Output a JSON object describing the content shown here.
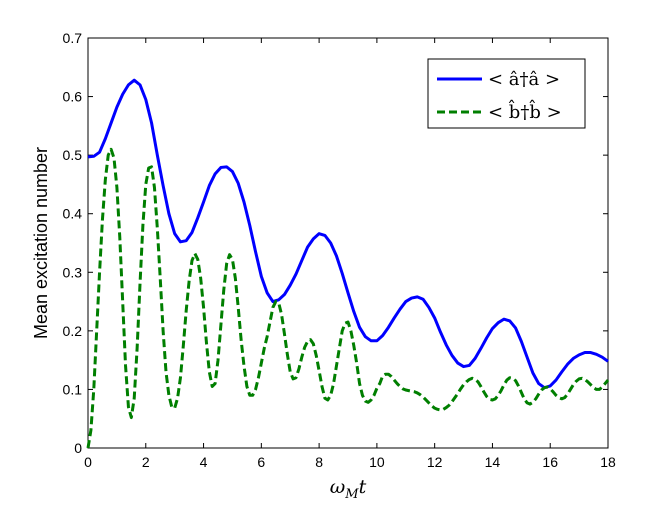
{
  "chart_data": {
    "type": "line",
    "title": "",
    "ylabel": "Mean excitation number",
    "xlabel": {
      "symbol": "ω",
      "subscript": "M",
      "variable": "t"
    },
    "xlim": [
      0,
      18
    ],
    "ylim": [
      0,
      0.7
    ],
    "xticks": [
      0,
      2,
      4,
      6,
      8,
      10,
      12,
      14,
      16,
      18
    ],
    "xtick_labels": [
      "0",
      "2",
      "4",
      "6",
      "8",
      "10",
      "12",
      "14",
      "16",
      "18"
    ],
    "yticks": [
      0,
      0.1,
      0.2,
      0.3,
      0.4,
      0.5,
      0.6,
      0.7
    ],
    "ytick_labels": [
      "0",
      "0.1",
      "0.2",
      "0.3",
      "0.4",
      "0.5",
      "0.6",
      "0.7"
    ],
    "grid": false,
    "legend_position": "top-right",
    "series": [
      {
        "name": "< â†â >",
        "color": "#0000ff",
        "style": "solid",
        "x": [
          0.0,
          0.2,
          0.4,
          0.6,
          0.8,
          1.0,
          1.2,
          1.4,
          1.6,
          1.8,
          2.0,
          2.2,
          2.4,
          2.6,
          2.8,
          3.0,
          3.2,
          3.4,
          3.6,
          3.8,
          4.0,
          4.2,
          4.4,
          4.6,
          4.8,
          5.0,
          5.2,
          5.4,
          5.6,
          5.8,
          6.0,
          6.2,
          6.4,
          6.6,
          6.8,
          7.0,
          7.2,
          7.4,
          7.6,
          7.8,
          8.0,
          8.2,
          8.4,
          8.6,
          8.8,
          9.0,
          9.2,
          9.4,
          9.6,
          9.8,
          10.0,
          10.2,
          10.4,
          10.6,
          10.8,
          11.0,
          11.2,
          11.4,
          11.6,
          11.8,
          12.0,
          12.2,
          12.4,
          12.6,
          12.8,
          13.0,
          13.2,
          13.4,
          13.6,
          13.8,
          14.0,
          14.2,
          14.4,
          14.6,
          14.8,
          15.0,
          15.2,
          15.4,
          15.6,
          15.8,
          16.0,
          16.2,
          16.4,
          16.6,
          16.8,
          17.0,
          17.2,
          17.4,
          17.6,
          17.8,
          18.0
        ],
        "y": [
          0.497,
          0.498,
          0.505,
          0.528,
          0.555,
          0.582,
          0.604,
          0.62,
          0.628,
          0.62,
          0.595,
          0.555,
          0.5,
          0.448,
          0.4,
          0.366,
          0.352,
          0.354,
          0.368,
          0.393,
          0.42,
          0.448,
          0.468,
          0.479,
          0.48,
          0.472,
          0.452,
          0.42,
          0.38,
          0.335,
          0.293,
          0.265,
          0.25,
          0.253,
          0.262,
          0.278,
          0.297,
          0.32,
          0.343,
          0.357,
          0.366,
          0.363,
          0.35,
          0.328,
          0.298,
          0.265,
          0.233,
          0.206,
          0.19,
          0.183,
          0.183,
          0.192,
          0.206,
          0.222,
          0.237,
          0.25,
          0.256,
          0.258,
          0.254,
          0.24,
          0.222,
          0.198,
          0.176,
          0.158,
          0.145,
          0.139,
          0.141,
          0.153,
          0.17,
          0.188,
          0.204,
          0.214,
          0.22,
          0.217,
          0.205,
          0.182,
          0.155,
          0.128,
          0.11,
          0.103,
          0.106,
          0.116,
          0.13,
          0.143,
          0.153,
          0.159,
          0.163,
          0.163,
          0.16,
          0.155,
          0.148
        ]
      },
      {
        "name": "< b̂†b̂ >",
        "color": "#007f00",
        "style": "dashed",
        "x": [
          0.0,
          0.1,
          0.2,
          0.3,
          0.4,
          0.5,
          0.6,
          0.7,
          0.8,
          0.9,
          1.0,
          1.1,
          1.2,
          1.3,
          1.4,
          1.5,
          1.6,
          1.7,
          1.8,
          1.9,
          2.0,
          2.1,
          2.2,
          2.3,
          2.4,
          2.5,
          2.6,
          2.7,
          2.8,
          2.9,
          3.0,
          3.1,
          3.2,
          3.3,
          3.4,
          3.5,
          3.6,
          3.7,
          3.8,
          3.9,
          4.0,
          4.1,
          4.2,
          4.3,
          4.4,
          4.5,
          4.6,
          4.7,
          4.8,
          4.9,
          5.0,
          5.1,
          5.2,
          5.3,
          5.4,
          5.5,
          5.6,
          5.7,
          5.8,
          5.9,
          6.0,
          6.1,
          6.2,
          6.3,
          6.4,
          6.5,
          6.6,
          6.7,
          6.8,
          6.9,
          7.0,
          7.1,
          7.2,
          7.3,
          7.4,
          7.5,
          7.6,
          7.7,
          7.8,
          7.9,
          8.0,
          8.1,
          8.2,
          8.3,
          8.4,
          8.5,
          8.6,
          8.7,
          8.8,
          8.9,
          9.0,
          9.1,
          9.2,
          9.3,
          9.4,
          9.5,
          9.6,
          9.7,
          9.8,
          9.9,
          10.0,
          10.1,
          10.2,
          10.3,
          10.4,
          10.5,
          10.6,
          10.7,
          10.8,
          10.9,
          11.0,
          11.1,
          11.2,
          11.3,
          11.4,
          11.5,
          11.6,
          11.7,
          11.8,
          11.9,
          12.0,
          12.1,
          12.2,
          12.3,
          12.4,
          12.5,
          12.6,
          12.7,
          12.8,
          12.9,
          13.0,
          13.1,
          13.2,
          13.3,
          13.4,
          13.5,
          13.6,
          13.7,
          13.8,
          13.9,
          14.0,
          14.1,
          14.2,
          14.3,
          14.4,
          14.5,
          14.6,
          14.7,
          14.8,
          14.9,
          15.0,
          15.1,
          15.2,
          15.3,
          15.4,
          15.5,
          15.6,
          15.7,
          15.8,
          15.9,
          16.0,
          16.1,
          16.2,
          16.3,
          16.4,
          16.5,
          16.6,
          16.7,
          16.8,
          16.9,
          17.0,
          17.1,
          17.2,
          17.3,
          17.4,
          17.5,
          17.6,
          17.7,
          17.8,
          17.9,
          18.0
        ],
        "y": [
          0.0,
          0.03,
          0.1,
          0.2,
          0.3,
          0.39,
          0.458,
          0.5,
          0.51,
          0.495,
          0.445,
          0.36,
          0.25,
          0.14,
          0.07,
          0.052,
          0.085,
          0.17,
          0.28,
          0.38,
          0.45,
          0.478,
          0.48,
          0.445,
          0.375,
          0.29,
          0.2,
          0.13,
          0.09,
          0.07,
          0.068,
          0.085,
          0.12,
          0.175,
          0.235,
          0.285,
          0.32,
          0.332,
          0.322,
          0.29,
          0.24,
          0.18,
          0.13,
          0.105,
          0.11,
          0.15,
          0.21,
          0.27,
          0.315,
          0.33,
          0.322,
          0.29,
          0.24,
          0.185,
          0.14,
          0.105,
          0.09,
          0.09,
          0.1,
          0.12,
          0.145,
          0.17,
          0.19,
          0.215,
          0.24,
          0.25,
          0.248,
          0.228,
          0.195,
          0.16,
          0.13,
          0.118,
          0.12,
          0.135,
          0.155,
          0.172,
          0.182,
          0.185,
          0.178,
          0.158,
          0.132,
          0.105,
          0.085,
          0.082,
          0.09,
          0.11,
          0.14,
          0.17,
          0.2,
          0.213,
          0.215,
          0.2,
          0.175,
          0.145,
          0.11,
          0.09,
          0.08,
          0.078,
          0.082,
          0.09,
          0.102,
          0.11,
          0.123,
          0.126,
          0.126,
          0.122,
          0.116,
          0.11,
          0.105,
          0.101,
          0.099,
          0.098,
          0.097,
          0.096,
          0.094,
          0.091,
          0.087,
          0.082,
          0.077,
          0.072,
          0.068,
          0.066,
          0.065,
          0.066,
          0.069,
          0.073,
          0.079,
          0.086,
          0.093,
          0.101,
          0.108,
          0.113,
          0.117,
          0.119,
          0.117,
          0.113,
          0.105,
          0.096,
          0.088,
          0.083,
          0.082,
          0.084,
          0.09,
          0.098,
          0.108,
          0.116,
          0.12,
          0.119,
          0.115,
          0.106,
          0.095,
          0.084,
          0.077,
          0.075,
          0.078,
          0.084,
          0.092,
          0.099,
          0.103,
          0.104,
          0.101,
          0.096,
          0.09,
          0.086,
          0.084,
          0.086,
          0.092,
          0.1,
          0.108,
          0.114,
          0.118,
          0.119,
          0.117,
          0.113,
          0.108,
          0.103,
          0.1,
          0.1,
          0.104,
          0.11,
          0.116
        ]
      }
    ]
  }
}
